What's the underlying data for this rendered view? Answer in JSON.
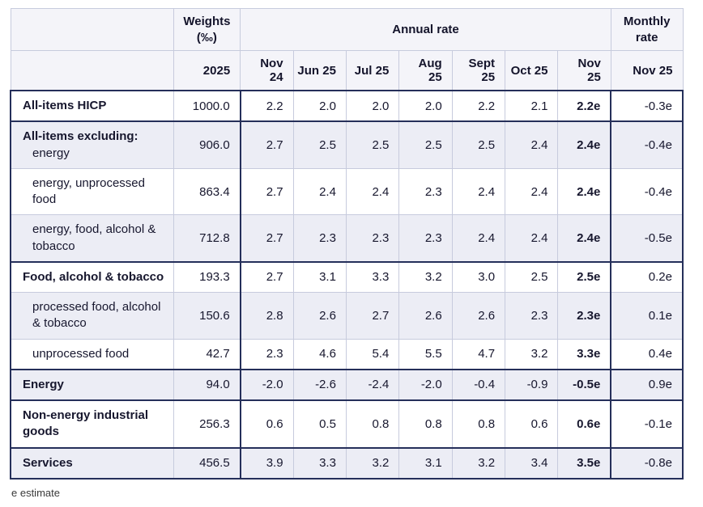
{
  "chart_data": {
    "type": "table",
    "header": {
      "weights_label": "Weights",
      "weights_unit": "(‰)",
      "annual_label": "Annual rate",
      "monthly_label": "Monthly rate",
      "weights_year": "2025",
      "annual_cols": [
        "Nov 24",
        "Jun 25",
        "Jul 25",
        "Aug 25",
        "Sept 25",
        "Oct 25",
        "Nov 25"
      ],
      "monthly_col": "Nov 25"
    },
    "rows": [
      {
        "label": "All-items HICP",
        "weight": "1000.0",
        "annual": [
          "2.2",
          "2.0",
          "2.0",
          "2.0",
          "2.2",
          "2.1",
          "2.2e"
        ],
        "monthly": "-0.3e"
      },
      {
        "label": "All-items excluding:",
        "label2": "energy",
        "weight": "906.0",
        "annual": [
          "2.7",
          "2.5",
          "2.5",
          "2.5",
          "2.5",
          "2.4",
          "2.4e"
        ],
        "monthly": "-0.4e"
      },
      {
        "label": "energy, unprocessed food",
        "weight": "863.4",
        "annual": [
          "2.7",
          "2.4",
          "2.4",
          "2.3",
          "2.4",
          "2.4",
          "2.4e"
        ],
        "monthly": "-0.4e"
      },
      {
        "label": "energy, food, alcohol & tobacco",
        "weight": "712.8",
        "annual": [
          "2.7",
          "2.3",
          "2.3",
          "2.3",
          "2.4",
          "2.4",
          "2.4e"
        ],
        "monthly": "-0.5e"
      },
      {
        "label": "Food, alcohol & tobacco",
        "weight": "193.3",
        "annual": [
          "2.7",
          "3.1",
          "3.3",
          "3.2",
          "3.0",
          "2.5",
          "2.5e"
        ],
        "monthly": "0.2e"
      },
      {
        "label": "processed food, alcohol & tobacco",
        "weight": "150.6",
        "annual": [
          "2.8",
          "2.6",
          "2.7",
          "2.6",
          "2.6",
          "2.3",
          "2.3e"
        ],
        "monthly": "0.1e"
      },
      {
        "label": "unprocessed food",
        "weight": "42.7",
        "annual": [
          "2.3",
          "4.6",
          "5.4",
          "5.5",
          "4.7",
          "3.2",
          "3.3e"
        ],
        "monthly": "0.4e"
      },
      {
        "label": "Energy",
        "weight": "94.0",
        "annual": [
          "-2.0",
          "-2.6",
          "-2.4",
          "-2.0",
          "-0.4",
          "-0.9",
          "-0.5e"
        ],
        "monthly": "0.9e"
      },
      {
        "label": "Non-energy industrial goods",
        "weight": "256.3",
        "annual": [
          "0.6",
          "0.5",
          "0.8",
          "0.8",
          "0.8",
          "0.6",
          "0.6e"
        ],
        "monthly": "-0.1e"
      },
      {
        "label": "Services",
        "weight": "456.5",
        "annual": [
          "3.9",
          "3.3",
          "3.2",
          "3.1",
          "3.2",
          "3.4",
          "3.5e"
        ],
        "monthly": "-0.8e"
      }
    ],
    "footnote": "e estimate"
  }
}
